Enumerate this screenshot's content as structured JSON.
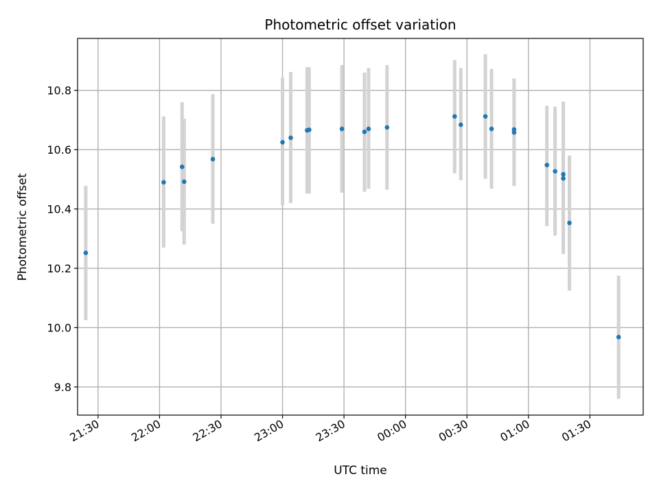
{
  "chart_data": {
    "type": "scatter",
    "title": "Photometric offset variation",
    "xlabel": "UTC time",
    "ylabel": "Photometric offset",
    "x_unit": "UTC time (HH:MM); times after midnight fall on the following day",
    "xlim": [
      "21:20",
      "01:56"
    ],
    "ylim": [
      9.705,
      10.975
    ],
    "grid": true,
    "legend": "none",
    "x_ticks": [
      "21:30",
      "22:00",
      "22:30",
      "23:00",
      "23:30",
      "00:00",
      "00:30",
      "01:00",
      "01:30"
    ],
    "y_ticks": [
      "9.8",
      "10.0",
      "10.2",
      "10.4",
      "10.6",
      "10.8"
    ],
    "colors": {
      "points": "#1f77b4",
      "error_bars": "#d3d3d3",
      "grid": "#b0b0b0"
    },
    "series": [
      {
        "points": [
          {
            "x": "21:24",
            "y": 10.252,
            "ylow": 10.025,
            "yhigh": 10.478
          },
          {
            "x": "22:02",
            "y": 10.49,
            "ylow": 10.27,
            "yhigh": 10.712
          },
          {
            "x": "22:11",
            "y": 10.542,
            "ylow": 10.325,
            "yhigh": 10.76
          },
          {
            "x": "22:12",
            "y": 10.492,
            "ylow": 10.28,
            "yhigh": 10.705
          },
          {
            "x": "22:26",
            "y": 10.568,
            "ylow": 10.35,
            "yhigh": 10.787
          },
          {
            "x": "23:00",
            "y": 10.625,
            "ylow": 10.412,
            "yhigh": 10.842
          },
          {
            "x": "23:04",
            "y": 10.64,
            "ylow": 10.42,
            "yhigh": 10.862
          },
          {
            "x": "23:12",
            "y": 10.665,
            "ylow": 10.452,
            "yhigh": 10.878
          },
          {
            "x": "23:13",
            "y": 10.667,
            "ylow": 10.452,
            "yhigh": 10.878
          },
          {
            "x": "23:29",
            "y": 10.67,
            "ylow": 10.455,
            "yhigh": 10.885
          },
          {
            "x": "23:40",
            "y": 10.66,
            "ylow": 10.458,
            "yhigh": 10.86
          },
          {
            "x": "23:42",
            "y": 10.67,
            "ylow": 10.468,
            "yhigh": 10.875
          },
          {
            "x": "23:51",
            "y": 10.675,
            "ylow": 10.465,
            "yhigh": 10.885
          },
          {
            "x": "00:24",
            "y": 10.712,
            "ylow": 10.52,
            "yhigh": 10.902
          },
          {
            "x": "00:27",
            "y": 10.684,
            "ylow": 10.497,
            "yhigh": 10.875
          },
          {
            "x": "00:39",
            "y": 10.712,
            "ylow": 10.502,
            "yhigh": 10.922
          },
          {
            "x": "00:42",
            "y": 10.67,
            "ylow": 10.468,
            "yhigh": 10.872
          },
          {
            "x": "00:53",
            "y": 10.668,
            "ylow": 10.478,
            "yhigh": 10.84
          },
          {
            "x": "00:53",
            "y": 10.658,
            "ylow": 10.478,
            "yhigh": 10.84
          },
          {
            "x": "01:09",
            "y": 10.548,
            "ylow": 10.342,
            "yhigh": 10.748
          },
          {
            "x": "01:13",
            "y": 10.527,
            "ylow": 10.31,
            "yhigh": 10.745
          },
          {
            "x": "01:17",
            "y": 10.517,
            "ylow": 10.248,
            "yhigh": 10.762
          },
          {
            "x": "01:17",
            "y": 10.503,
            "ylow": 10.265,
            "yhigh": 10.762
          },
          {
            "x": "01:20",
            "y": 10.353,
            "ylow": 10.125,
            "yhigh": 10.58
          },
          {
            "x": "01:44",
            "y": 9.968,
            "ylow": 9.76,
            "yhigh": 10.175
          }
        ]
      }
    ]
  }
}
